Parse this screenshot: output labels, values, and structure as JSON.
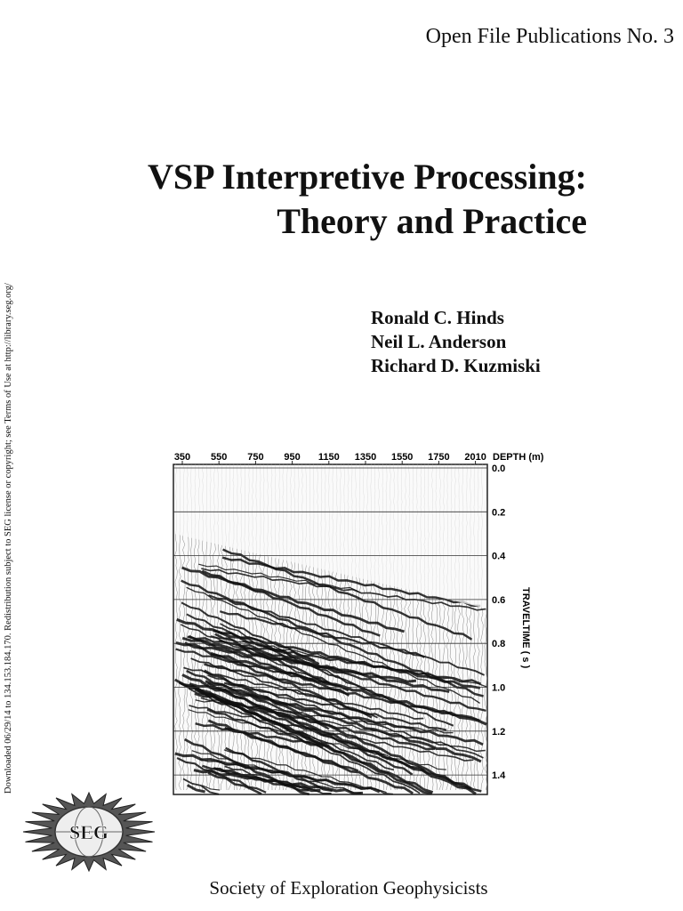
{
  "series": "Open File Publications No. 3",
  "title": {
    "line1": "VSP Interpretive Processing:",
    "line2": "Theory and Practice"
  },
  "authors": [
    "Ronald C. Hinds",
    "Neil L. Anderson",
    "Richard D. Kuzmiski"
  ],
  "figure": {
    "depth_labels": [
      "350",
      "550",
      "750",
      "950",
      "1150",
      "1350",
      "1550",
      "1750",
      "2010"
    ],
    "depth_axis_label": "DEPTH (m)",
    "time_labels": [
      "0.0",
      "0.2",
      "0.4",
      "0.6",
      "0.8",
      "1.0",
      "1.2",
      "1.4"
    ],
    "time_axis_label": "TRAVELTIME ( s )"
  },
  "logo_text": "SEG",
  "publisher": "Society of Exploration Geophysicists",
  "side_note": "Downloaded 06/29/14 to 134.153.184.170. Redistribution subject to SEG license or copyright; see Terms of Use at http://library.seg.org/"
}
